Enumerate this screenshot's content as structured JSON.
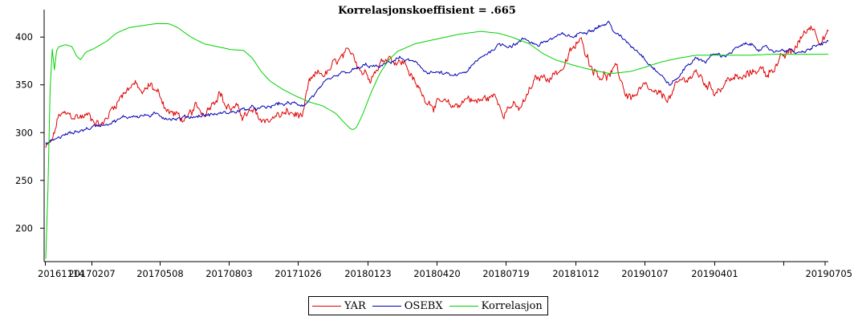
{
  "chart_data": {
    "type": "line",
    "title": "Korrelasjonskoeffisient = .665",
    "xlabel": "",
    "ylabel": "",
    "x_ticks": [
      "20161114",
      "20170207",
      "20170508",
      "20170803",
      "20171026",
      "20180123",
      "20180420",
      "20180719",
      "20181012",
      "20190107",
      "20190401",
      "20190705"
    ],
    "y_ticks": [
      200,
      250,
      300,
      350,
      400
    ],
    "ylim": [
      165,
      422
    ],
    "grid": false,
    "legend_position": "bottom-center",
    "series": [
      {
        "name": "YAR",
        "color": "#e00000",
        "noise": 7,
        "values": [
          [
            0,
            284
          ],
          [
            0.15,
            290
          ],
          [
            0.3,
            318
          ],
          [
            0.6,
            316
          ],
          [
            1,
            318
          ],
          [
            1.3,
            308
          ],
          [
            1.5,
            325
          ],
          [
            1.8,
            345
          ],
          [
            2.0,
            352
          ],
          [
            2.2,
            340
          ],
          [
            2.4,
            350
          ],
          [
            2.6,
            338
          ],
          [
            2.8,
            322
          ],
          [
            3.0,
            318
          ],
          [
            3.2,
            310
          ],
          [
            3.4,
            325
          ],
          [
            3.6,
            320
          ],
          [
            3.8,
            335
          ],
          [
            3.95,
            345
          ],
          [
            4.1,
            328
          ],
          [
            4.3,
            325
          ],
          [
            4.5,
            318
          ],
          [
            4.7,
            320
          ],
          [
            4.9,
            312
          ],
          [
            5.1,
            315
          ],
          [
            5.3,
            318
          ],
          [
            5.5,
            320
          ],
          [
            5.7,
            318
          ],
          [
            5.85,
            318
          ],
          [
            6.0,
            350
          ],
          [
            6.2,
            360
          ],
          [
            6.4,
            362
          ],
          [
            6.6,
            372
          ],
          [
            6.8,
            378
          ],
          [
            7.0,
            382
          ],
          [
            7.2,
            365
          ],
          [
            7.4,
            362
          ],
          [
            7.6,
            372
          ],
          [
            7.8,
            382
          ],
          [
            8.0,
            375
          ],
          [
            8.2,
            372
          ],
          [
            8.4,
            350
          ],
          [
            8.6,
            338
          ],
          [
            8.8,
            332
          ],
          [
            9.0,
            330
          ],
          [
            9.2,
            325
          ],
          [
            9.4,
            330
          ],
          [
            9.6,
            338
          ],
          [
            9.8,
            332
          ],
          [
            10.0,
            335
          ],
          [
            10.2,
            338
          ],
          [
            10.4,
            325
          ],
          [
            10.6,
            330
          ],
          [
            10.75,
            322
          ],
          [
            10.9,
            332
          ],
          [
            11.1,
            352
          ],
          [
            11.3,
            358
          ],
          [
            11.5,
            360
          ],
          [
            11.8,
            370
          ],
          [
            12.0,
            388
          ],
          [
            12.2,
            395
          ],
          [
            12.4,
            372
          ],
          [
            12.6,
            362
          ],
          [
            12.8,
            360
          ],
          [
            13.0,
            365
          ],
          [
            13.2,
            340
          ],
          [
            13.4,
            338
          ],
          [
            13.6,
            345
          ],
          [
            13.8,
            340
          ],
          [
            14.0,
            335
          ],
          [
            14.2,
            338
          ],
          [
            14.4,
            350
          ],
          [
            14.6,
            358
          ],
          [
            14.8,
            362
          ],
          [
            15.0,
            352
          ],
          [
            15.2,
            345
          ],
          [
            15.4,
            350
          ],
          [
            15.6,
            358
          ],
          [
            15.8,
            355
          ],
          [
            16.0,
            360
          ],
          [
            16.2,
            368
          ],
          [
            16.4,
            362
          ],
          [
            16.6,
            372
          ],
          [
            16.8,
            378
          ],
          [
            17.0,
            385
          ],
          [
            17.2,
            400
          ],
          [
            17.4,
            412
          ],
          [
            17.5,
            408
          ],
          [
            17.6,
            400
          ],
          [
            17.8,
            405
          ]
        ]
      },
      {
        "name": "OSEBX",
        "color": "#0000b4",
        "noise": 3,
        "values": [
          [
            0,
            288
          ],
          [
            0.3,
            295
          ],
          [
            0.6,
            300
          ],
          [
            1,
            305
          ],
          [
            1.5,
            312
          ],
          [
            2.0,
            318
          ],
          [
            2.5,
            318
          ],
          [
            3.0,
            315
          ],
          [
            3.5,
            318
          ],
          [
            4.0,
            320
          ],
          [
            4.3,
            322
          ],
          [
            4.6,
            325
          ],
          [
            5.0,
            325
          ],
          [
            5.3,
            330
          ],
          [
            5.6,
            330
          ],
          [
            5.9,
            330
          ],
          [
            6.1,
            340
          ],
          [
            6.4,
            352
          ],
          [
            6.7,
            360
          ],
          [
            7.0,
            365
          ],
          [
            7.3,
            370
          ],
          [
            7.6,
            368
          ],
          [
            8.0,
            378
          ],
          [
            8.3,
            375
          ],
          [
            8.6,
            365
          ],
          [
            9.0,
            362
          ],
          [
            9.3,
            358
          ],
          [
            9.6,
            365
          ],
          [
            10.0,
            382
          ],
          [
            10.3,
            392
          ],
          [
            10.6,
            392
          ],
          [
            10.9,
            398
          ],
          [
            11.2,
            392
          ],
          [
            11.5,
            398
          ],
          [
            11.8,
            402
          ],
          [
            12.0,
            400
          ],
          [
            12.3,
            408
          ],
          [
            12.6,
            412
          ],
          [
            12.8,
            415
          ],
          [
            13.0,
            402
          ],
          [
            13.3,
            392
          ],
          [
            13.5,
            385
          ],
          [
            13.7,
            375
          ],
          [
            14.0,
            360
          ],
          [
            14.2,
            350
          ],
          [
            14.4,
            358
          ],
          [
            14.6,
            372
          ],
          [
            14.8,
            378
          ],
          [
            15.0,
            375
          ],
          [
            15.2,
            382
          ],
          [
            15.4,
            380
          ],
          [
            15.7,
            388
          ],
          [
            16.0,
            392
          ],
          [
            16.3,
            388
          ],
          [
            16.6,
            385
          ],
          [
            16.8,
            388
          ],
          [
            17.0,
            385
          ],
          [
            17.2,
            382
          ],
          [
            17.4,
            388
          ],
          [
            17.6,
            392
          ],
          [
            17.8,
            395
          ]
        ]
      },
      {
        "name": "Korrelasjon",
        "color": "#00d200",
        "noise": 0,
        "values": [
          [
            0,
            168
          ],
          [
            0.04,
            220
          ],
          [
            0.08,
            300
          ],
          [
            0.11,
            370
          ],
          [
            0.14,
            392
          ],
          [
            0.17,
            375
          ],
          [
            0.2,
            365
          ],
          [
            0.24,
            385
          ],
          [
            0.3,
            390
          ],
          [
            0.45,
            392
          ],
          [
            0.6,
            390
          ],
          [
            0.7,
            380
          ],
          [
            0.8,
            376
          ],
          [
            0.9,
            384
          ],
          [
            1.1,
            388
          ],
          [
            1.4,
            396
          ],
          [
            1.6,
            404
          ],
          [
            1.9,
            410
          ],
          [
            2.2,
            412
          ],
          [
            2.5,
            414
          ],
          [
            2.8,
            414
          ],
          [
            3.0,
            410
          ],
          [
            3.3,
            400
          ],
          [
            3.6,
            393
          ],
          [
            3.9,
            390
          ],
          [
            4.2,
            387
          ],
          [
            4.5,
            386
          ],
          [
            4.7,
            378
          ],
          [
            4.9,
            364
          ],
          [
            5.1,
            354
          ],
          [
            5.4,
            345
          ],
          [
            5.7,
            338
          ],
          [
            6.0,
            332
          ],
          [
            6.3,
            328
          ],
          [
            6.6,
            320
          ],
          [
            6.8,
            310
          ],
          [
            6.95,
            303
          ],
          [
            7.05,
            304
          ],
          [
            7.2,
            318
          ],
          [
            7.4,
            342
          ],
          [
            7.6,
            362
          ],
          [
            7.8,
            376
          ],
          [
            8.0,
            385
          ],
          [
            8.4,
            393
          ],
          [
            8.9,
            398
          ],
          [
            9.4,
            403
          ],
          [
            9.9,
            406
          ],
          [
            10.3,
            404
          ],
          [
            10.6,
            400
          ],
          [
            11.0,
            393
          ],
          [
            11.3,
            383
          ],
          [
            11.6,
            376
          ],
          [
            11.9,
            372
          ],
          [
            12.2,
            368
          ],
          [
            12.5,
            365
          ],
          [
            12.8,
            362
          ],
          [
            12.9,
            362
          ],
          [
            13.3,
            364
          ],
          [
            13.6,
            368
          ],
          [
            14.0,
            374
          ],
          [
            14.4,
            378
          ],
          [
            14.8,
            381
          ],
          [
            15.2,
            381
          ],
          [
            15.6,
            381
          ],
          [
            16.0,
            381
          ],
          [
            16.5,
            382
          ],
          [
            17.0,
            382
          ],
          [
            17.5,
            382
          ],
          [
            17.8,
            382
          ]
        ]
      }
    ]
  }
}
